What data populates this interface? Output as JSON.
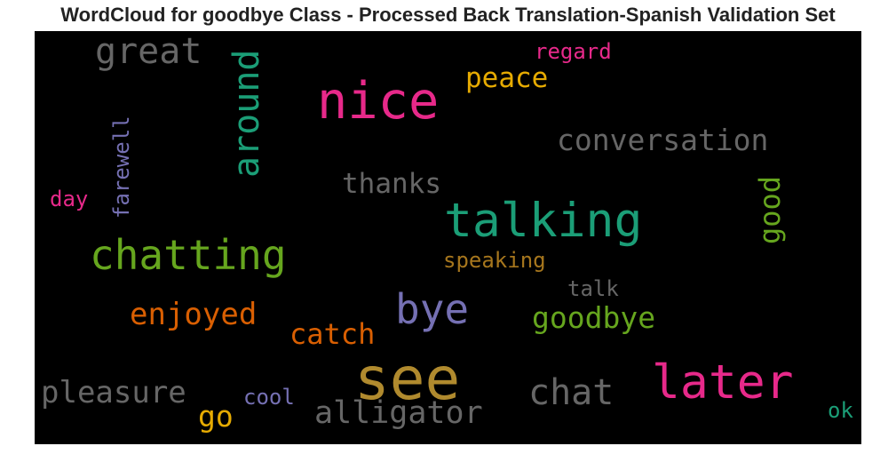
{
  "chart_data": {
    "type": "wordcloud",
    "title": "WordCloud for goodbye Class - Processed Back Translation-Spanish Validation Set",
    "background": "#000000",
    "words": [
      {
        "text": "see",
        "weight": 1.0,
        "color": "#b08a2e",
        "orientation": "horizontal"
      },
      {
        "text": "nice",
        "weight": 0.86,
        "color": "#e7298a",
        "orientation": "horizontal"
      },
      {
        "text": "later",
        "weight": 0.8,
        "color": "#e7298a",
        "orientation": "horizontal"
      },
      {
        "text": "talking",
        "weight": 0.8,
        "color": "#1b9e77",
        "orientation": "horizontal"
      },
      {
        "text": "chatting",
        "weight": 0.69,
        "color": "#66a61e",
        "orientation": "horizontal"
      },
      {
        "text": "bye",
        "weight": 0.69,
        "color": "#7570b3",
        "orientation": "horizontal"
      },
      {
        "text": "great",
        "weight": 0.61,
        "color": "#666666",
        "orientation": "horizontal"
      },
      {
        "text": "chat",
        "weight": 0.61,
        "color": "#666666",
        "orientation": "horizontal"
      },
      {
        "text": "around",
        "weight": 0.6,
        "color": "#1b9e77",
        "orientation": "vertical"
      },
      {
        "text": "alligator",
        "weight": 0.53,
        "color": "#666666",
        "orientation": "horizontal"
      },
      {
        "text": "pleasure",
        "weight": 0.52,
        "color": "#666666",
        "orientation": "horizontal"
      },
      {
        "text": "enjoyed",
        "weight": 0.52,
        "color": "#d95f02",
        "orientation": "horizontal"
      },
      {
        "text": "conversation",
        "weight": 0.5,
        "color": "#666666",
        "orientation": "horizontal"
      },
      {
        "text": "go",
        "weight": 0.5,
        "color": "#e6ab02",
        "orientation": "horizontal"
      },
      {
        "text": "goodbye",
        "weight": 0.5,
        "color": "#66a61e",
        "orientation": "horizontal"
      },
      {
        "text": "catch",
        "weight": 0.48,
        "color": "#d95f02",
        "orientation": "horizontal"
      },
      {
        "text": "good",
        "weight": 0.48,
        "color": "#66a61e",
        "orientation": "vertical"
      },
      {
        "text": "thanks",
        "weight": 0.47,
        "color": "#666666",
        "orientation": "horizontal"
      },
      {
        "text": "peace",
        "weight": 0.47,
        "color": "#e6ab02",
        "orientation": "horizontal"
      },
      {
        "text": "farewell",
        "weight": 0.37,
        "color": "#7570b3",
        "orientation": "vertical"
      },
      {
        "text": "speaking",
        "weight": 0.37,
        "color": "#a6761d",
        "orientation": "horizontal"
      },
      {
        "text": "regard",
        "weight": 0.37,
        "color": "#e7298a",
        "orientation": "horizontal"
      },
      {
        "text": "cool",
        "weight": 0.37,
        "color": "#7570b3",
        "orientation": "horizontal"
      },
      {
        "text": "talk",
        "weight": 0.37,
        "color": "#666666",
        "orientation": "horizontal"
      },
      {
        "text": "day",
        "weight": 0.37,
        "color": "#e7298a",
        "orientation": "horizontal"
      },
      {
        "text": "ok",
        "weight": 0.37,
        "color": "#1b9e77",
        "orientation": "horizontal"
      }
    ]
  }
}
